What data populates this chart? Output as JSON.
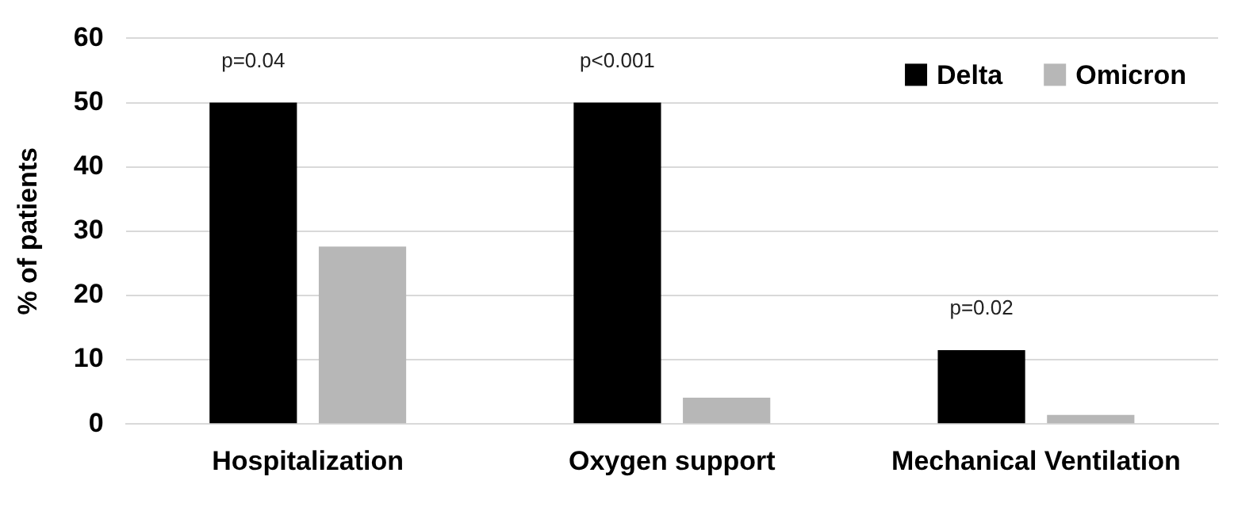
{
  "chart_data": {
    "type": "bar",
    "ylabel": "% of patients",
    "categories": [
      "Hospitalization",
      "Oxygen support",
      "Mechanical Ventilation"
    ],
    "series": [
      {
        "name": "Delta",
        "color": "#000000",
        "values": [
          50,
          50,
          11.5
        ]
      },
      {
        "name": "Omicron",
        "color": "#b7b7b7",
        "values": [
          27.6,
          4.1,
          1.4
        ]
      }
    ],
    "ylim": [
      0,
      60
    ],
    "yticks": [
      0,
      10,
      20,
      30,
      40,
      50,
      60
    ],
    "grid": "y",
    "legend": "top right",
    "annotations": [
      "p=0.04",
      "p<0.001",
      "p=0.02"
    ]
  }
}
